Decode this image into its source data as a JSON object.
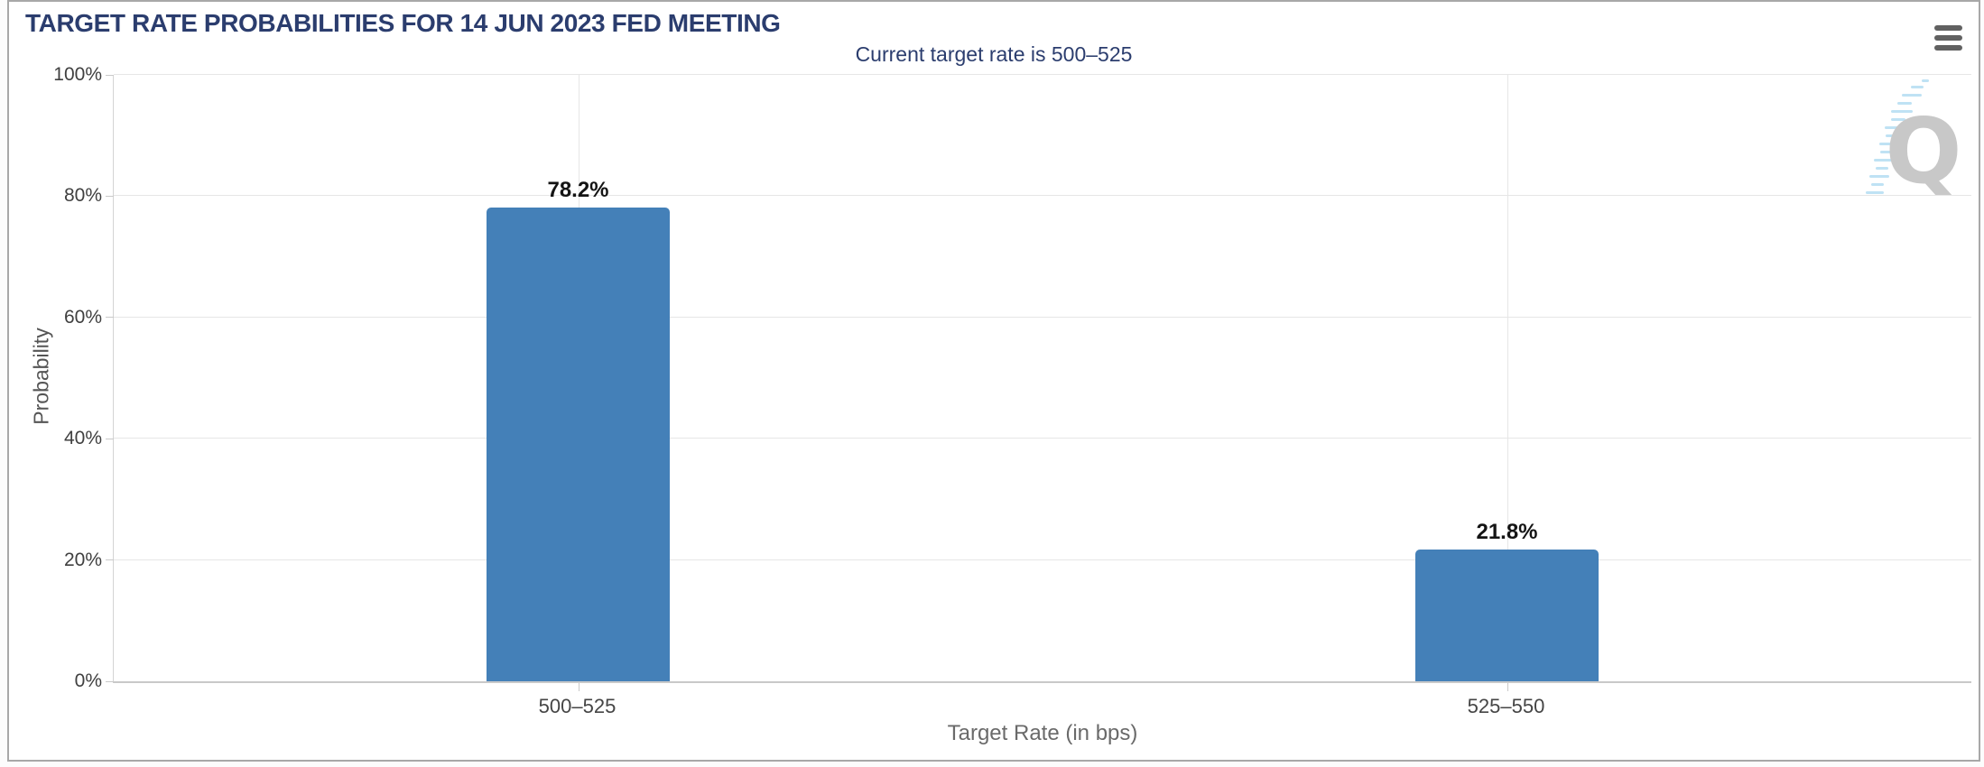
{
  "watermark": {
    "letter": "Q"
  },
  "toolbar": {
    "menu_icon": "hamburger-export-menu"
  },
  "chart_data": {
    "type": "bar",
    "title": "TARGET RATE PROBABILITIES FOR 14 JUN 2023 FED MEETING",
    "subtitle": "Current target rate is 500–525",
    "categories": [
      "500–525",
      "525–550"
    ],
    "values": [
      78.2,
      21.8
    ],
    "data_labels": [
      "78.2%",
      "21.8%"
    ],
    "xlabel": "Target Rate (in bps)",
    "ylabel": "Probability",
    "ylim": [
      0,
      100
    ],
    "ytick_labels": [
      "0%",
      "20%",
      "40%",
      "60%",
      "80%",
      "100%"
    ],
    "grid": true,
    "legend": "none",
    "bar_color": "#4480b8",
    "title_color": "#2b3d6e",
    "gridline_color": "#e6e6e6"
  }
}
